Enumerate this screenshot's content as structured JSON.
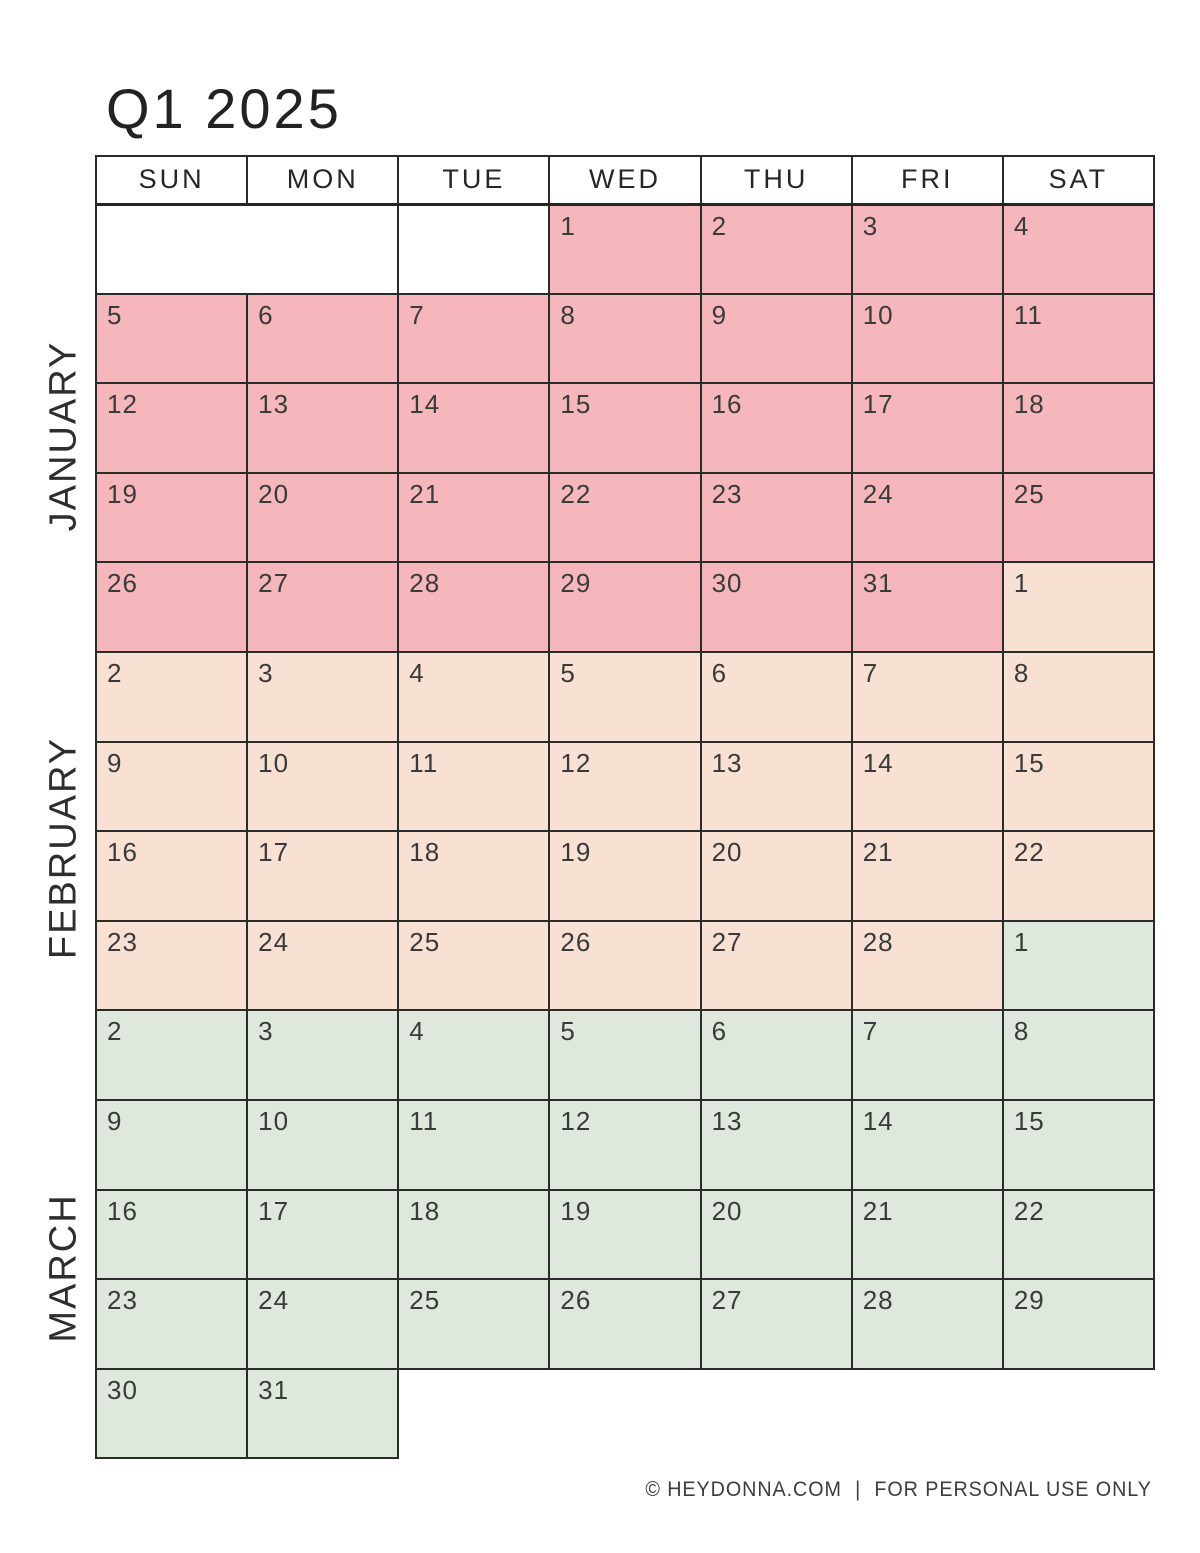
{
  "title": "Q1 2025",
  "weekdays": [
    "SUN",
    "MON",
    "TUE",
    "WED",
    "THU",
    "FRI",
    "SAT"
  ],
  "months": [
    {
      "label": "JANUARY",
      "key": "jan",
      "color": "#F5B7BC"
    },
    {
      "label": "FEBRUARY",
      "key": "feb",
      "color": "#F8E0D3"
    },
    {
      "label": "MARCH",
      "key": "mar",
      "color": "#DEE8DC"
    }
  ],
  "colors": {
    "jan": "#F5B7BC",
    "feb": "#F8E0D3",
    "mar": "#DEE8DC",
    "blank": "#FFFFFF",
    "border": "#2B2B2B",
    "text": "#3A3A3A"
  },
  "grid": {
    "rows": [
      [
        {
          "type": "blank",
          "span": 2
        },
        {
          "type": "blank"
        },
        {
          "day": "1",
          "month": "jan"
        },
        {
          "day": "2",
          "month": "jan"
        },
        {
          "day": "3",
          "month": "jan"
        },
        {
          "day": "4",
          "month": "jan"
        }
      ],
      [
        {
          "day": "5",
          "month": "jan"
        },
        {
          "day": "6",
          "month": "jan"
        },
        {
          "day": "7",
          "month": "jan"
        },
        {
          "day": "8",
          "month": "jan"
        },
        {
          "day": "9",
          "month": "jan"
        },
        {
          "day": "10",
          "month": "jan"
        },
        {
          "day": "11",
          "month": "jan"
        }
      ],
      [
        {
          "day": "12",
          "month": "jan"
        },
        {
          "day": "13",
          "month": "jan"
        },
        {
          "day": "14",
          "month": "jan"
        },
        {
          "day": "15",
          "month": "jan"
        },
        {
          "day": "16",
          "month": "jan"
        },
        {
          "day": "17",
          "month": "jan"
        },
        {
          "day": "18",
          "month": "jan"
        }
      ],
      [
        {
          "day": "19",
          "month": "jan"
        },
        {
          "day": "20",
          "month": "jan"
        },
        {
          "day": "21",
          "month": "jan"
        },
        {
          "day": "22",
          "month": "jan"
        },
        {
          "day": "23",
          "month": "jan"
        },
        {
          "day": "24",
          "month": "jan"
        },
        {
          "day": "25",
          "month": "jan"
        }
      ],
      [
        {
          "day": "26",
          "month": "jan"
        },
        {
          "day": "27",
          "month": "jan"
        },
        {
          "day": "28",
          "month": "jan"
        },
        {
          "day": "29",
          "month": "jan"
        },
        {
          "day": "30",
          "month": "jan"
        },
        {
          "day": "31",
          "month": "jan"
        },
        {
          "day": "1",
          "month": "feb"
        }
      ],
      [
        {
          "day": "2",
          "month": "feb"
        },
        {
          "day": "3",
          "month": "feb"
        },
        {
          "day": "4",
          "month": "feb"
        },
        {
          "day": "5",
          "month": "feb"
        },
        {
          "day": "6",
          "month": "feb"
        },
        {
          "day": "7",
          "month": "feb"
        },
        {
          "day": "8",
          "month": "feb"
        }
      ],
      [
        {
          "day": "9",
          "month": "feb"
        },
        {
          "day": "10",
          "month": "feb"
        },
        {
          "day": "11",
          "month": "feb"
        },
        {
          "day": "12",
          "month": "feb"
        },
        {
          "day": "13",
          "month": "feb"
        },
        {
          "day": "14",
          "month": "feb"
        },
        {
          "day": "15",
          "month": "feb"
        }
      ],
      [
        {
          "day": "16",
          "month": "feb"
        },
        {
          "day": "17",
          "month": "feb"
        },
        {
          "day": "18",
          "month": "feb"
        },
        {
          "day": "19",
          "month": "feb"
        },
        {
          "day": "20",
          "month": "feb"
        },
        {
          "day": "21",
          "month": "feb"
        },
        {
          "day": "22",
          "month": "feb"
        }
      ],
      [
        {
          "day": "23",
          "month": "feb"
        },
        {
          "day": "24",
          "month": "feb"
        },
        {
          "day": "25",
          "month": "feb"
        },
        {
          "day": "26",
          "month": "feb"
        },
        {
          "day": "27",
          "month": "feb"
        },
        {
          "day": "28",
          "month": "feb"
        },
        {
          "day": "1",
          "month": "mar"
        }
      ],
      [
        {
          "day": "2",
          "month": "mar"
        },
        {
          "day": "3",
          "month": "mar"
        },
        {
          "day": "4",
          "month": "mar"
        },
        {
          "day": "5",
          "month": "mar"
        },
        {
          "day": "6",
          "month": "mar"
        },
        {
          "day": "7",
          "month": "mar"
        },
        {
          "day": "8",
          "month": "mar"
        }
      ],
      [
        {
          "day": "9",
          "month": "mar"
        },
        {
          "day": "10",
          "month": "mar"
        },
        {
          "day": "11",
          "month": "mar"
        },
        {
          "day": "12",
          "month": "mar"
        },
        {
          "day": "13",
          "month": "mar"
        },
        {
          "day": "14",
          "month": "mar"
        },
        {
          "day": "15",
          "month": "mar"
        }
      ],
      [
        {
          "day": "16",
          "month": "mar"
        },
        {
          "day": "17",
          "month": "mar"
        },
        {
          "day": "18",
          "month": "mar"
        },
        {
          "day": "19",
          "month": "mar"
        },
        {
          "day": "20",
          "month": "mar"
        },
        {
          "day": "21",
          "month": "mar"
        },
        {
          "day": "22",
          "month": "mar"
        }
      ],
      [
        {
          "day": "23",
          "month": "mar"
        },
        {
          "day": "24",
          "month": "mar"
        },
        {
          "day": "25",
          "month": "mar"
        },
        {
          "day": "26",
          "month": "mar"
        },
        {
          "day": "27",
          "month": "mar"
        },
        {
          "day": "28",
          "month": "mar"
        },
        {
          "day": "29",
          "month": "mar"
        }
      ],
      [
        {
          "day": "30",
          "month": "mar"
        },
        {
          "day": "31",
          "month": "mar"
        },
        {
          "type": "ghost"
        },
        {
          "type": "ghost"
        },
        {
          "type": "ghost"
        },
        {
          "type": "ghost"
        },
        {
          "type": "ghost"
        }
      ]
    ]
  },
  "footer": {
    "copyright": "© HEYDONNA.COM",
    "separator": "|",
    "usage": "FOR PERSONAL USE ONLY"
  }
}
